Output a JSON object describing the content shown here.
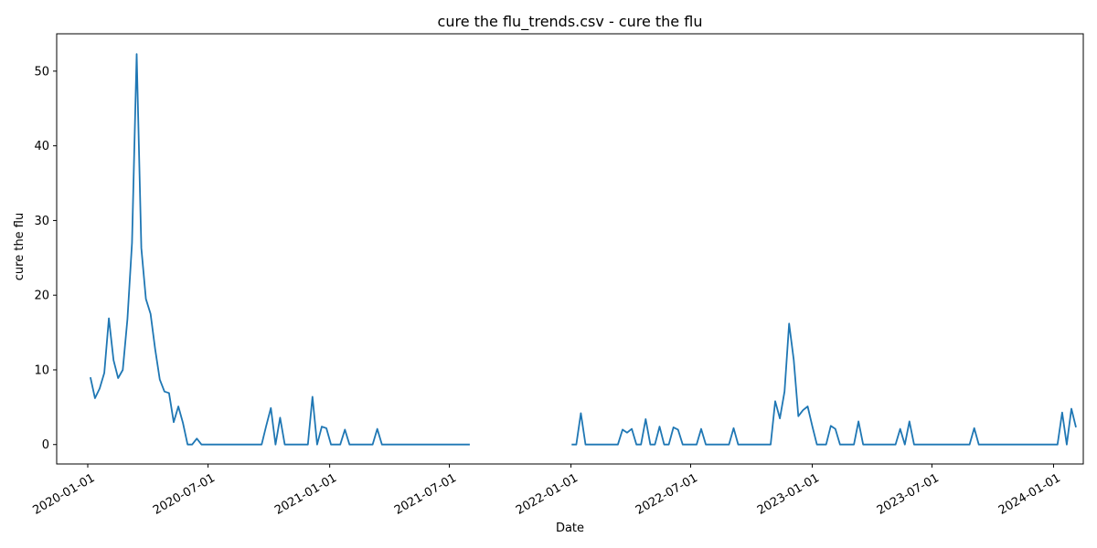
{
  "chart_data": {
    "type": "line",
    "title": "cure the flu_trends.csv - cure the flu",
    "xlabel": "Date",
    "ylabel": "cure the flu",
    "xlim": [
      "2019-11-15",
      "2024-02-15"
    ],
    "ylim": [
      -2.6,
      55
    ],
    "yticks": [
      0,
      10,
      20,
      30,
      40,
      50
    ],
    "xticks": [
      "2020-01-01",
      "2020-07-01",
      "2021-01-01",
      "2021-07-01",
      "2022-01-01",
      "2022-07-01",
      "2023-01-01",
      "2023-07-01",
      "2024-01-01"
    ],
    "grid": false,
    "colors": {
      "line": "#1f77b4",
      "axes": "#000000"
    },
    "series": [
      {
        "segments": [
          {
            "start": "2020-01-05",
            "step_days": 7,
            "values": [
              9.0,
              6.2,
              7.5,
              9.6,
              16.9,
              11.3,
              8.9,
              10.0,
              16.8,
              27.0,
              52.3,
              26.3,
              19.5,
              17.5,
              12.8,
              8.7,
              7.1,
              6.9,
              3.0,
              5.1,
              2.9,
              0,
              0,
              0.8,
              0,
              0,
              0,
              0,
              0,
              0,
              0,
              0,
              0,
              0,
              0,
              0,
              0,
              0,
              2.5,
              4.9,
              0,
              3.6,
              0,
              0,
              0,
              0,
              0,
              0,
              6.4,
              0,
              2.4,
              2.2,
              0,
              0,
              0,
              2.0,
              0,
              0,
              0,
              0,
              0,
              0,
              2.1,
              0,
              0,
              0,
              0,
              0,
              0,
              0,
              0,
              0,
              0,
              0,
              0,
              0,
              0,
              0,
              0,
              0,
              0,
              0,
              0
            ]
          },
          {
            "start": "2022-01-02",
            "step_days": 7,
            "values": [
              0,
              0,
              4.2,
              0,
              0,
              0,
              0,
              0,
              0,
              0,
              0,
              2.0,
              1.6,
              2.1,
              0,
              0,
              3.4,
              0,
              0,
              2.4,
              0,
              0,
              2.3,
              2.0,
              0,
              0,
              0,
              0,
              2.1,
              0,
              0,
              0,
              0,
              0,
              0,
              2.2,
              0,
              0,
              0,
              0,
              0,
              0,
              0,
              0,
              5.8,
              3.5,
              7.1,
              16.2,
              11.3,
              3.8,
              4.6,
              5.1,
              2.5,
              0,
              0,
              0,
              2.5,
              2.1,
              0,
              0,
              0,
              0,
              3.1,
              0,
              0,
              0,
              0,
              0,
              0,
              0,
              0,
              2.1,
              0,
              3.1,
              0,
              0,
              0,
              0,
              0,
              0,
              0,
              0,
              0,
              0,
              0,
              0,
              0,
              2.2,
              0,
              0,
              0,
              0,
              0,
              0,
              0,
              0,
              0,
              0,
              0,
              0,
              0,
              0,
              0,
              0,
              0,
              0,
              4.3,
              0,
              4.8,
              2.3
            ]
          }
        ]
      }
    ]
  }
}
